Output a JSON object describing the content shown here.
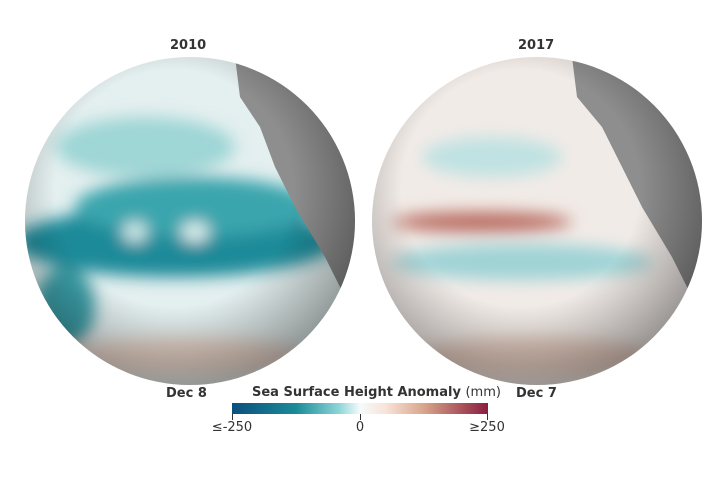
{
  "panels": [
    {
      "year": "2010",
      "date": "Dec 8"
    },
    {
      "year": "2017",
      "date": "Dec 7"
    }
  ],
  "legend": {
    "title": "Sea Surface Height Anomaly",
    "unit": "(mm)",
    "min_label": "≤-250",
    "mid_label": "0",
    "max_label": "≥250",
    "colors": {
      "low": "#0b4f7c",
      "mid": "#f5fbfb",
      "high": "#8a1e40"
    }
  }
}
